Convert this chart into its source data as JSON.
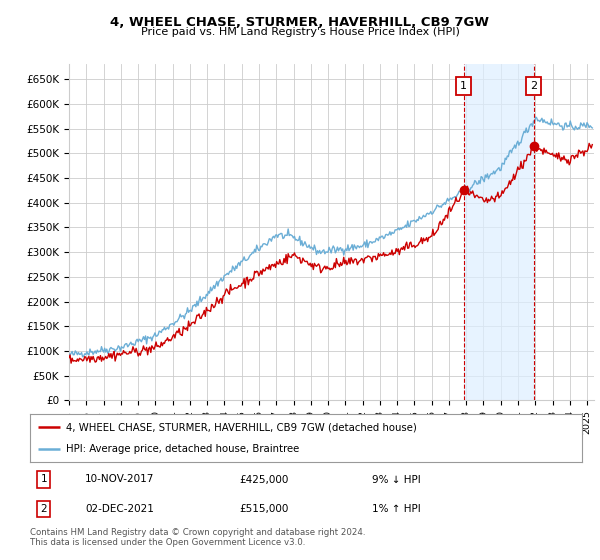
{
  "title": "4, WHEEL CHASE, STURMER, HAVERHILL, CB9 7GW",
  "subtitle": "Price paid vs. HM Land Registry's House Price Index (HPI)",
  "ylim": [
    0,
    680000
  ],
  "hpi_color": "#6baed6",
  "price_color": "#cc0000",
  "vline_color": "#cc0000",
  "shade_color": "#ddeeff",
  "sale1_year": 2017.86,
  "sale1_price": 425000,
  "sale2_year": 2021.92,
  "sale2_price": 515000,
  "legend_line1": "4, WHEEL CHASE, STURMER, HAVERHILL, CB9 7GW (detached house)",
  "legend_line2": "HPI: Average price, detached house, Braintree",
  "sale1_date": "10-NOV-2017",
  "sale1_amount": "£425,000",
  "sale1_pct": "9% ↓ HPI",
  "sale2_date": "02-DEC-2021",
  "sale2_amount": "£515,000",
  "sale2_pct": "1% ↑ HPI",
  "footnote": "Contains HM Land Registry data © Crown copyright and database right 2024.\nThis data is licensed under the Open Government Licence v3.0.",
  "bg_color": "#ffffff",
  "grid_color": "#cccccc"
}
